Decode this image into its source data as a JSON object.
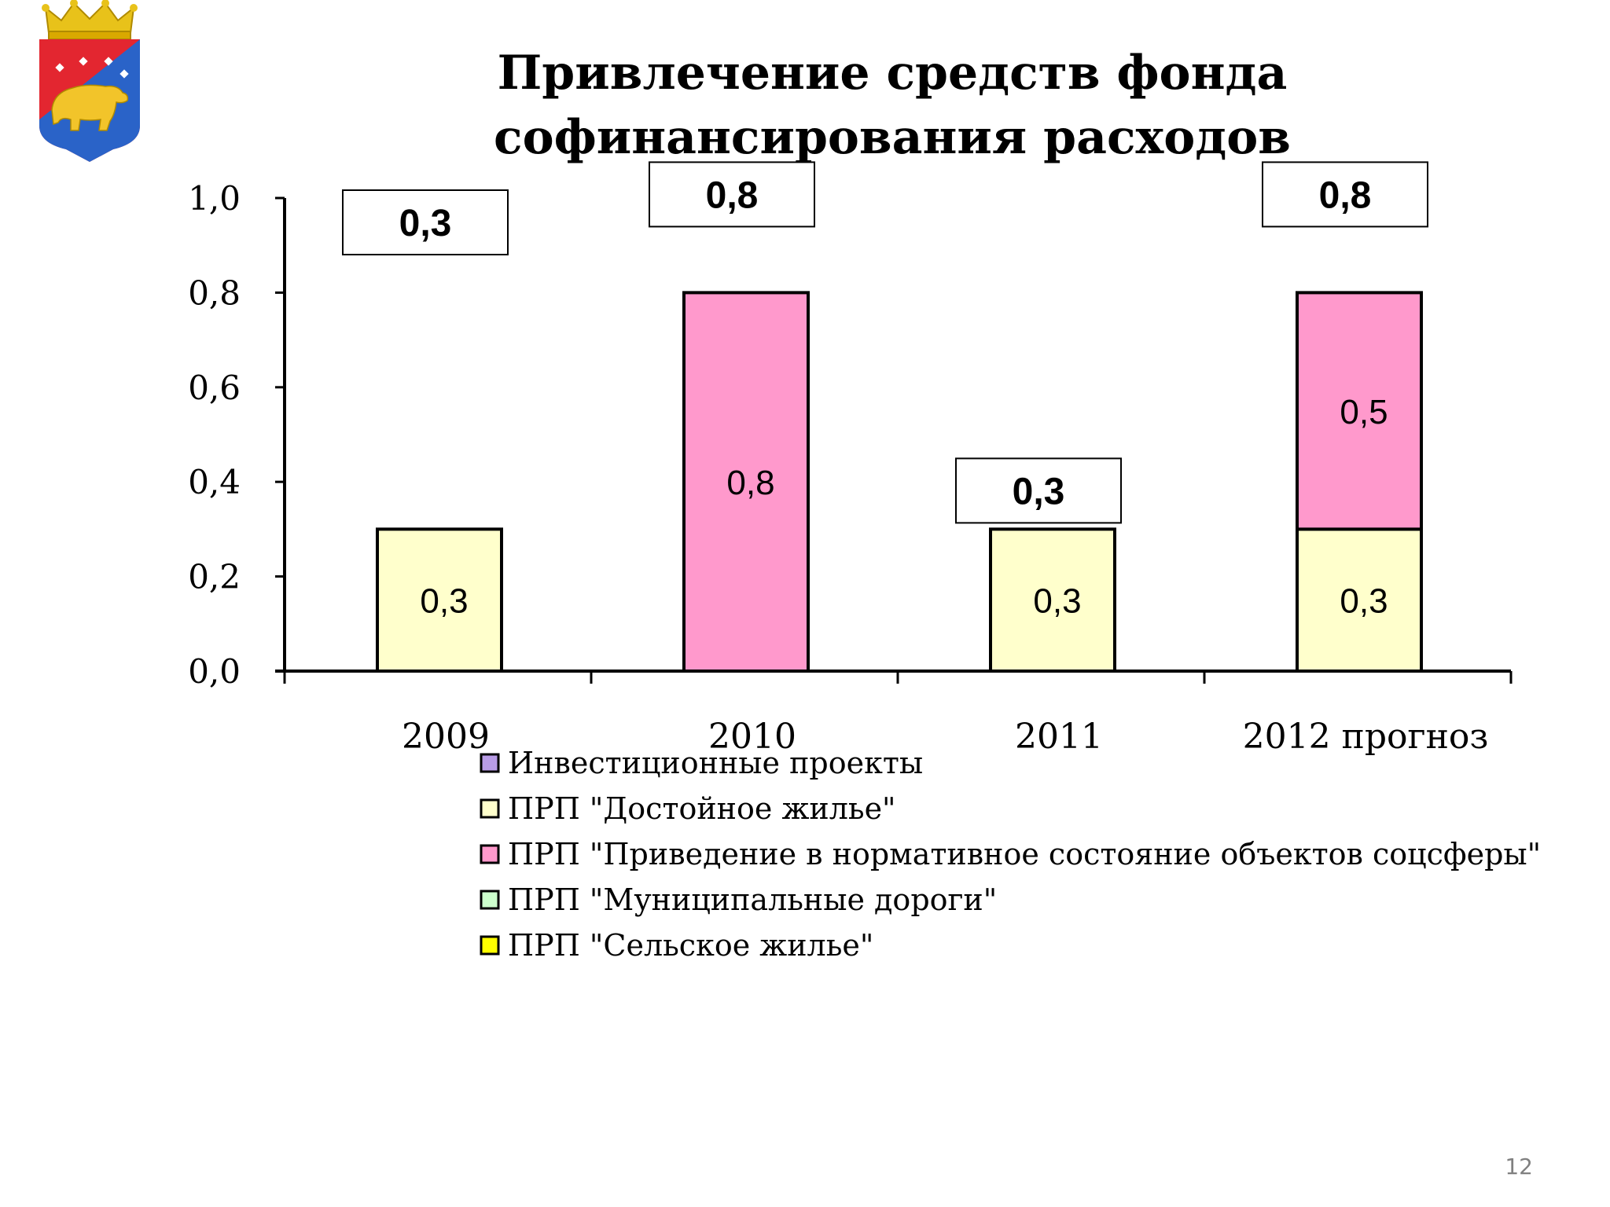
{
  "page": {
    "title": "Привлечение средств фонда софинансирования расходов",
    "page_number": "12"
  },
  "emblem": {
    "icon": "coat-of-arms-bear-icon"
  },
  "chart_data": {
    "type": "bar",
    "stacked": true,
    "categories": [
      "2009",
      "2010",
      "2011",
      "2012 прогноз"
    ],
    "series": [
      {
        "name": "Инвестиционные проекты",
        "color": "#b89ce6",
        "values": [
          0,
          0,
          0,
          0
        ],
        "labels": [
          "",
          "",
          "",
          ""
        ]
      },
      {
        "name": "ПРП \"Достойное жилье\"",
        "color": "#ffffcc",
        "values": [
          0.3,
          0,
          0.3,
          0.3
        ],
        "labels": [
          "0,3",
          "",
          "0,3",
          "0,3"
        ]
      },
      {
        "name": "ПРП \"Приведение в нормативное состояние объектов соцсферы\"",
        "color": "#ff99cc",
        "values": [
          0,
          0.8,
          0,
          0.5
        ],
        "labels": [
          "",
          "0,8",
          "",
          "0,5"
        ]
      },
      {
        "name": "ПРП \"Муниципальные дороги\"",
        "color": "#ccffcc",
        "values": [
          0,
          0,
          0,
          0
        ],
        "labels": [
          "",
          "",
          "",
          ""
        ]
      },
      {
        "name": "ПРП \"Сельское жилье\"",
        "color": "#ffff00",
        "values": [
          0,
          0,
          0,
          0
        ],
        "labels": [
          "",
          "",
          "",
          ""
        ]
      }
    ],
    "totals": [
      "0,3",
      "0,8",
      "0,3",
      "0,8"
    ],
    "ylim": [
      0,
      1.0
    ],
    "yticks": [
      "0,0",
      "0,2",
      "0,4",
      "0,6",
      "0,8",
      "1,0"
    ],
    "grid": false,
    "legend_position": "bottom"
  }
}
